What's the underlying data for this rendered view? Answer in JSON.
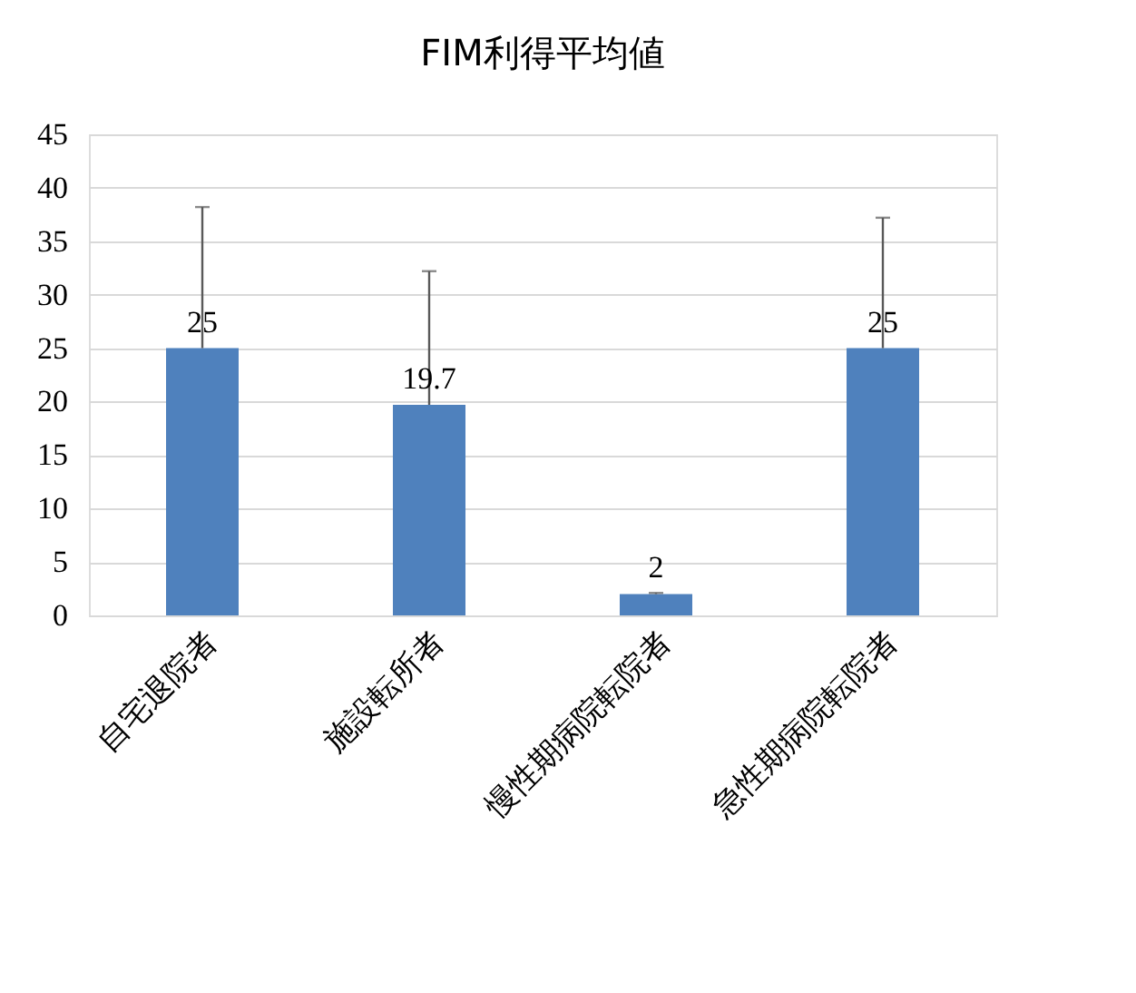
{
  "chart_data": {
    "type": "bar",
    "title": "FIM利得平均値",
    "categories": [
      "自宅退院者",
      "施設転所者",
      "慢性期病院転院者",
      "急性期病院転院者"
    ],
    "values": [
      25,
      19.7,
      2,
      25
    ],
    "errors": [
      [
        25,
        38.2
      ],
      [
        19.7,
        32.2
      ],
      [
        2,
        2.1
      ],
      [
        25,
        37.2
      ]
    ],
    "color": "#4f81bd",
    "ylim": [
      0,
      45
    ],
    "yticks": [
      0,
      5,
      10,
      15,
      20,
      25,
      30,
      35,
      40,
      45
    ],
    "grid": "y",
    "data_labels": true
  }
}
